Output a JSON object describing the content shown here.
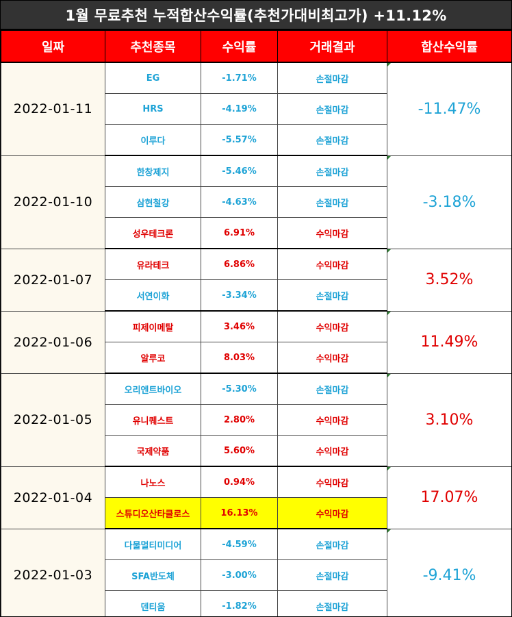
{
  "title": "1월 무료추천 누적합산수익률(추천가대비최고가) +11.12%",
  "headers": [
    "일짜",
    "추천종목",
    "수익률",
    "거래결과",
    "합산수익률"
  ],
  "colors": {
    "header_bg": "#ff0000",
    "title_bg": "#333333",
    "loss": "#1ea3d6",
    "gain": "#e00000",
    "highlight": "#ffff00",
    "date_bg": "#fdf9ee"
  },
  "groups": [
    {
      "date": "2022-01-11",
      "total": "-11.47%",
      "total_status": "loss",
      "rows": [
        {
          "stock": "EG",
          "rate": "-1.71%",
          "result": "손절마감",
          "status": "loss"
        },
        {
          "stock": "HRS",
          "rate": "-4.19%",
          "result": "손절마감",
          "status": "loss"
        },
        {
          "stock": "이루다",
          "rate": "-5.57%",
          "result": "손절마감",
          "status": "loss"
        }
      ]
    },
    {
      "date": "2022-01-10",
      "total": "-3.18%",
      "total_status": "loss",
      "rows": [
        {
          "stock": "한창제지",
          "rate": "-5.46%",
          "result": "손절마감",
          "status": "loss"
        },
        {
          "stock": "삼현철강",
          "rate": "-4.63%",
          "result": "손절마감",
          "status": "loss"
        },
        {
          "stock": "성우테크론",
          "rate": "6.91%",
          "result": "수익마감",
          "status": "gain"
        }
      ]
    },
    {
      "date": "2022-01-07",
      "total": "3.52%",
      "total_status": "gain",
      "rows": [
        {
          "stock": "유라테크",
          "rate": "6.86%",
          "result": "수익마감",
          "status": "gain"
        },
        {
          "stock": "서연이화",
          "rate": "-3.34%",
          "result": "손절마감",
          "status": "loss"
        }
      ]
    },
    {
      "date": "2022-01-06",
      "total": "11.49%",
      "total_status": "gain",
      "rows": [
        {
          "stock": "피제이메탈",
          "rate": "3.46%",
          "result": "수익마감",
          "status": "gain"
        },
        {
          "stock": "알루코",
          "rate": "8.03%",
          "result": "수익마감",
          "status": "gain"
        }
      ]
    },
    {
      "date": "2022-01-05",
      "total": "3.10%",
      "total_status": "gain",
      "rows": [
        {
          "stock": "오리엔트바이오",
          "rate": "-5.30%",
          "result": "손절마감",
          "status": "loss"
        },
        {
          "stock": "유니퀘스트",
          "rate": "2.80%",
          "result": "수익마감",
          "status": "gain"
        },
        {
          "stock": "국제약품",
          "rate": "5.60%",
          "result": "수익마감",
          "status": "gain"
        }
      ]
    },
    {
      "date": "2022-01-04",
      "total": "17.07%",
      "total_status": "gain",
      "rows": [
        {
          "stock": "나노스",
          "rate": "0.94%",
          "result": "수익마감",
          "status": "gain"
        },
        {
          "stock": "스튜디오산타클로스",
          "rate": "16.13%",
          "result": "수익마감",
          "status": "gain",
          "highlight": true
        }
      ]
    },
    {
      "date": "2022-01-03",
      "total": "-9.41%",
      "total_status": "loss",
      "rows": [
        {
          "stock": "다물멀티미디어",
          "rate": "-4.59%",
          "result": "손절마감",
          "status": "loss"
        },
        {
          "stock": "SFA반도체",
          "rate": "-3.00%",
          "result": "손절마감",
          "status": "loss"
        },
        {
          "stock": "덴티움",
          "rate": "-1.82%",
          "result": "손절마감",
          "status": "loss"
        }
      ]
    }
  ]
}
